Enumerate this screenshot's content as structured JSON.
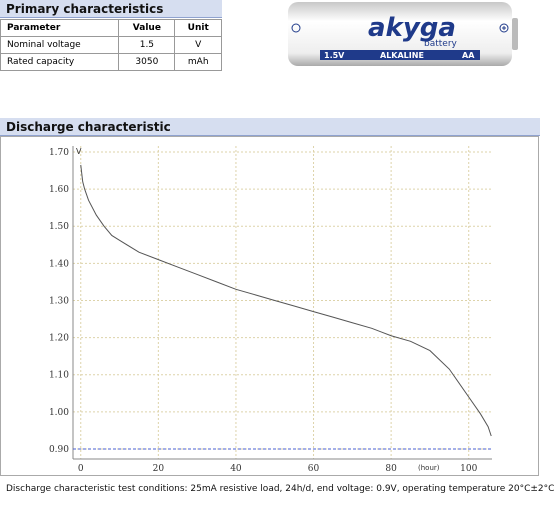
{
  "primary": {
    "title": "Primary characteristics",
    "header": [
      "Parameter",
      "Value",
      "Unit"
    ],
    "rows": [
      [
        "Nominal voltage",
        1.5,
        "V"
      ],
      [
        "Rated capacity",
        3050,
        "mAh"
      ]
    ]
  },
  "battery": {
    "brand": "akyga",
    "sub": "battery",
    "voltage": "1.5V",
    "chemistry": "ALKALINE",
    "size": "AA"
  },
  "chart_data": {
    "type": "line",
    "title": "Discharge characteristic",
    "x_label": "(hour)",
    "y_label": "V",
    "caption": "Discharge characteristic test conditions: 25mA resistive load, 24h/d, end voltage: 0.9V, operating temperature 20°C±2°C",
    "x": [
      0,
      0.5,
      1,
      2,
      4,
      6,
      8,
      10,
      15,
      20,
      25,
      30,
      35,
      40,
      45,
      50,
      55,
      60,
      65,
      70,
      75,
      80,
      85,
      90,
      95,
      100,
      103,
      105,
      105.8
    ],
    "series": [
      {
        "name": "Discharge",
        "color": "#555555",
        "values": [
          1.665,
          1.62,
          1.6,
          1.57,
          1.53,
          1.5,
          1.475,
          1.462,
          1.43,
          1.41,
          1.39,
          1.37,
          1.35,
          1.33,
          1.315,
          1.3,
          1.285,
          1.27,
          1.255,
          1.24,
          1.225,
          1.205,
          1.19,
          1.165,
          1.115,
          1.04,
          0.995,
          0.96,
          0.935
        ]
      }
    ],
    "xlim": [
      -2,
      106
    ],
    "xticks": [
      0,
      20,
      40,
      60,
      80,
      100
    ],
    "ylim": [
      0.873,
      1.716
    ],
    "yticks": [
      {
        "value": 0.9,
        "label": "0.90"
      },
      {
        "value": 1.0,
        "label": "1.00"
      },
      {
        "value": 1.1,
        "label": "1.10"
      },
      {
        "value": 1.2,
        "label": "1.20"
      },
      {
        "value": 1.3,
        "label": "1.30"
      },
      {
        "value": 1.4,
        "label": "1.40"
      },
      {
        "value": 1.5,
        "label": "1.50"
      },
      {
        "value": 1.6,
        "label": "1.60"
      },
      {
        "value": 1.7,
        "label": "1.70"
      }
    ],
    "grid": true,
    "reference_line": {
      "value": 0.9,
      "color": "#4a5fd0"
    }
  }
}
